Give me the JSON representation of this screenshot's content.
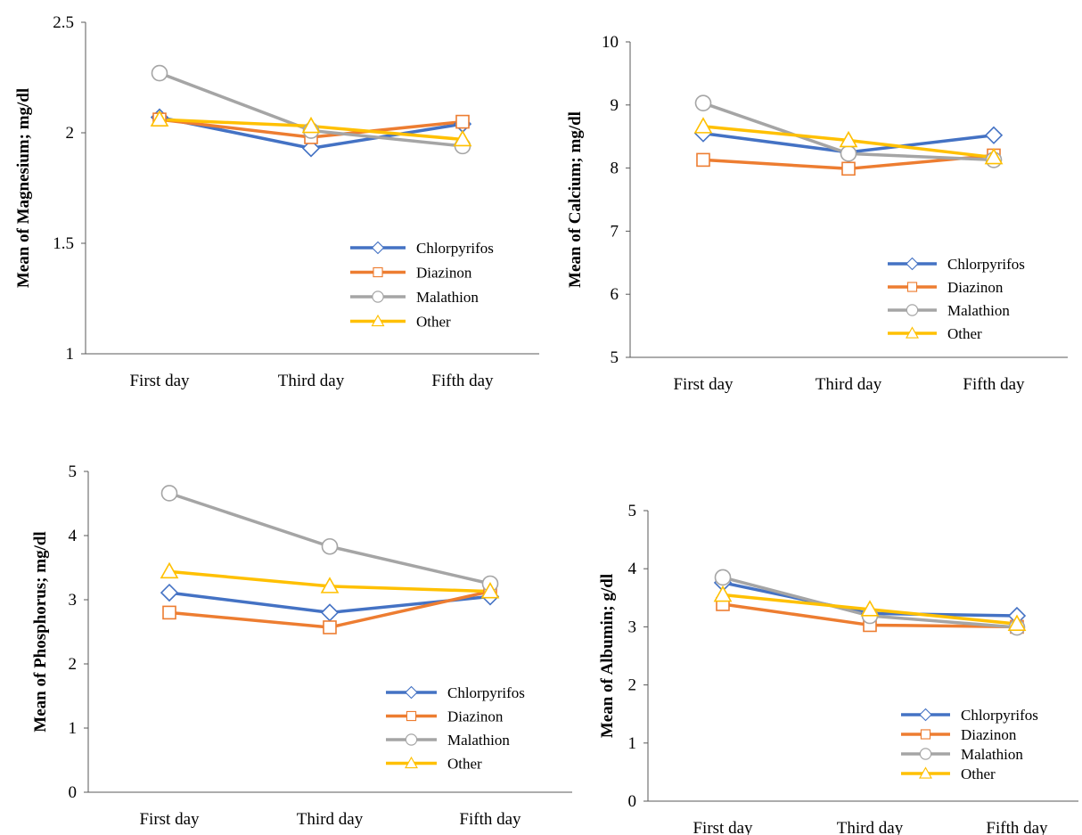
{
  "colors": {
    "Chlorpyrifos": "#4472C4",
    "Diazinon": "#ED7D31",
    "Malathion": "#A5A5A5",
    "Other": "#FFC000"
  },
  "markers": {
    "Chlorpyrifos": "diamond",
    "Diazinon": "square",
    "Malathion": "circle",
    "Other": "triangle"
  },
  "chart_data": [
    {
      "type": "line",
      "ylabel": "Mean of Magnesium; mg/dl",
      "categories": [
        "First day",
        "Third day",
        "Fifth day"
      ],
      "ylim": [
        1,
        2.5
      ],
      "yticks": [
        "1",
        "1.5",
        "2",
        "2.5"
      ],
      "legend_position": "right-center",
      "series": [
        {
          "name": "Chlorpyrifos",
          "values": [
            2.07,
            1.93,
            2.04
          ]
        },
        {
          "name": "Diazinon",
          "values": [
            2.06,
            1.98,
            2.05
          ]
        },
        {
          "name": "Malathion",
          "values": [
            2.27,
            2.01,
            1.94
          ]
        },
        {
          "name": "Other",
          "values": [
            2.06,
            2.03,
            1.97
          ]
        }
      ]
    },
    {
      "type": "line",
      "ylabel": "Mean of Calcium; mg/dl",
      "categories": [
        "First day",
        "Third day",
        "Fifth day"
      ],
      "ylim": [
        5,
        10
      ],
      "yticks": [
        "5",
        "6",
        "7",
        "8",
        "9",
        "10"
      ],
      "legend_position": "bottom-right",
      "series": [
        {
          "name": "Chlorpyrifos",
          "values": [
            8.55,
            8.25,
            8.52
          ]
        },
        {
          "name": "Diazinon",
          "values": [
            8.13,
            7.99,
            8.2
          ]
        },
        {
          "name": "Malathion",
          "values": [
            9.03,
            8.23,
            8.13
          ]
        },
        {
          "name": "Other",
          "values": [
            8.66,
            8.44,
            8.17
          ]
        }
      ]
    },
    {
      "type": "line",
      "ylabel": "Mean of Phosphorus; mg/dl",
      "categories": [
        "First day",
        "Third day",
        "Fifth day"
      ],
      "ylim": [
        0,
        5
      ],
      "yticks": [
        "0",
        "1",
        "2",
        "3",
        "4",
        "5"
      ],
      "legend_position": "bottom-right",
      "series": [
        {
          "name": "Chlorpyrifos",
          "values": [
            3.11,
            2.8,
            3.05
          ]
        },
        {
          "name": "Diazinon",
          "values": [
            2.8,
            2.57,
            3.13
          ]
        },
        {
          "name": "Malathion",
          "values": [
            4.66,
            3.83,
            3.25
          ]
        },
        {
          "name": "Other",
          "values": [
            3.44,
            3.21,
            3.13
          ]
        }
      ]
    },
    {
      "type": "line",
      "ylabel": "Mean of Albumin; g/dl",
      "categories": [
        "First day",
        "Third day",
        "Fifth day"
      ],
      "ylim": [
        0,
        5
      ],
      "yticks": [
        "0",
        "1",
        "2",
        "3",
        "4",
        "5"
      ],
      "legend_position": "bottom-right",
      "series": [
        {
          "name": "Chlorpyrifos",
          "values": [
            3.76,
            3.23,
            3.19
          ]
        },
        {
          "name": "Diazinon",
          "values": [
            3.39,
            3.03,
            3.0
          ]
        },
        {
          "name": "Malathion",
          "values": [
            3.85,
            3.19,
            2.99
          ]
        },
        {
          "name": "Other",
          "values": [
            3.55,
            3.3,
            3.05
          ]
        }
      ]
    }
  ]
}
